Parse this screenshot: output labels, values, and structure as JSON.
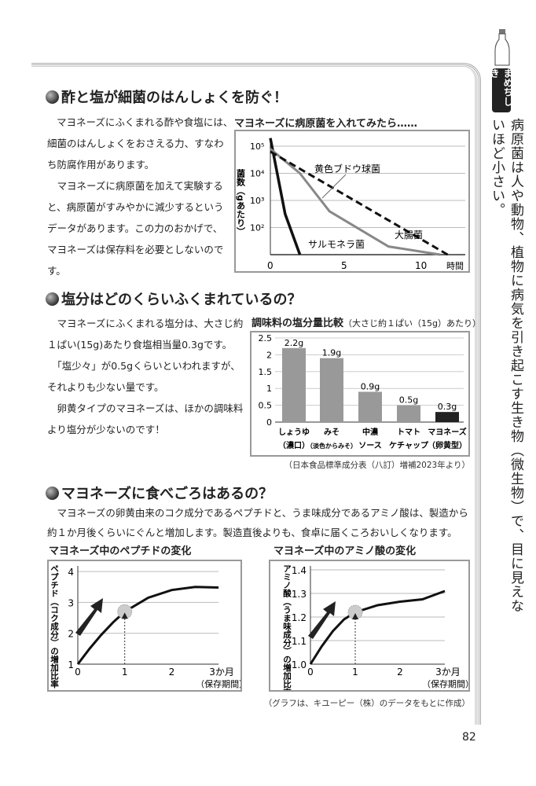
{
  "sidebar": {
    "tag": "まめちしき",
    "text": "病原菌は人や動物、植物に病気を引き起こす生き物（微生物）で、目に見えないほど小さい。"
  },
  "page_number": "82",
  "section1": {
    "heading": "酢と塩が細菌のはんしょくを防ぐ！",
    "intro": "マヨネーズにふくまれる酢や食塩には、",
    "body": "細菌のはんしょくをおさえる力、すなわ\nち防腐作用があります。\n　マヨネーズに病原菌を加えて実験する\nと、病原菌がすみやかに減少するという\nデータがあります。この力のおかげで、\nマヨネーズは保存料を必要としないので\nす。"
  },
  "section2": {
    "heading": "塩分はどのくらいふくまれているの？",
    "body": "　マヨネーズにふくまれる塩分は、大さじ約\n１ぱい(15g)あたり食塩相当量0.3gです。\n　「塩少々」が0.5gくらいといわれますが、\nそれよりも少ない量です。\n　卵黄タイプのマヨネーズは、ほかの調味料\nより塩分が少ないのです！",
    "source": "（日本食品標準成分表（八訂）増補2023年より）"
  },
  "section3": {
    "heading": "マヨネーズに食べごろはあるの？",
    "body": "　マヨネーズの卵黄由来のコク成分であるペプチドと、うま味成分であるアミノ酸は、製造から\n約１か月後くらいにぐんと増加します。製造直後よりも、食卓に届くころおいしくなります。",
    "source": "（グラフは、キユーピー（株）のデータをもとに作成）"
  },
  "chart_data": [
    {
      "type": "line",
      "title": "マヨネーズに病原菌を入れてみたら……",
      "xlabel": "時間",
      "ylabel": "菌数（gあたり）",
      "yscale": "log",
      "xticks": [
        "0",
        "5",
        "10"
      ],
      "yticks": [
        "10⁵",
        "10⁴",
        "10³",
        "10²"
      ],
      "xlim": [
        0,
        12.5
      ],
      "ylim_log10": [
        1,
        5.5
      ],
      "series": [
        {
          "name": "サルモネラ菌",
          "style": "solid-black",
          "x": [
            0,
            1,
            2
          ],
          "log10_y": [
            5.3,
            2.5,
            1
          ]
        },
        {
          "name": "黄色ブドウ球菌",
          "style": "solid-gray",
          "x": [
            0,
            2,
            4,
            8,
            11.5
          ],
          "log10_y": [
            4.9,
            4,
            2.6,
            1.3,
            1
          ]
        },
        {
          "name": "大腸菌",
          "style": "dashed-black",
          "x": [
            0,
            12
          ],
          "log10_y": [
            4.8,
            1
          ]
        }
      ]
    },
    {
      "type": "bar",
      "title": "調味料の塩分量比較",
      "subtitle": "（大さじ約１ぱい（15g）あたり）",
      "ylim": [
        0,
        2.5
      ],
      "yticks": [
        "0",
        "0.5",
        "1",
        "1.5",
        "2",
        "2.5"
      ],
      "categories": [
        [
          "しょうゆ",
          "（濃口）"
        ],
        [
          "みそ",
          "（淡色からみそ）"
        ],
        [
          "中濃",
          "ソース"
        ],
        [
          "トマト",
          "ケチャップ"
        ],
        [
          "マヨネーズ",
          "（卵黄型）"
        ]
      ],
      "values": [
        2.2,
        1.9,
        0.9,
        0.5,
        0.3
      ],
      "labels": [
        "2.2g",
        "1.9g",
        "0.9g",
        "0.5g",
        "0.3g"
      ],
      "colors": [
        "#999999",
        "#999999",
        "#999999",
        "#999999",
        "#222222"
      ]
    },
    {
      "type": "line",
      "title": "マヨネーズ中のペプチドの変化",
      "ylabel": "ペプチド（コク成分）の増加比率",
      "xlabel": "3か月",
      "xlabel2": "（保存期間）",
      "xticks": [
        "0",
        "1",
        "2"
      ],
      "yticks": [
        "1",
        "2",
        "3",
        "4"
      ],
      "ylim": [
        1,
        4
      ],
      "xlim": [
        0,
        3
      ],
      "x": [
        0,
        0.25,
        0.5,
        0.75,
        1,
        1.5,
        2,
        2.5,
        3
      ],
      "y": [
        1,
        1.5,
        1.95,
        2.35,
        2.7,
        3.15,
        3.4,
        3.5,
        3.48
      ]
    },
    {
      "type": "line",
      "title": "マヨネーズ中のアミノ酸の変化",
      "ylabel": "アミノ酸（うま味成分）の増加比率",
      "xlabel": "3か月",
      "xlabel2": "（保存期間）",
      "xticks": [
        "0",
        "1",
        "2"
      ],
      "yticks": [
        "1.0",
        "1.1",
        "1.2",
        "1.3",
        "1.4"
      ],
      "ylim": [
        1,
        1.4
      ],
      "xlim": [
        0,
        3
      ],
      "x": [
        0,
        0.25,
        0.5,
        0.75,
        1,
        1.5,
        2,
        2.5,
        3
      ],
      "y": [
        1,
        1.075,
        1.14,
        1.19,
        1.22,
        1.25,
        1.265,
        1.275,
        1.31
      ]
    }
  ]
}
